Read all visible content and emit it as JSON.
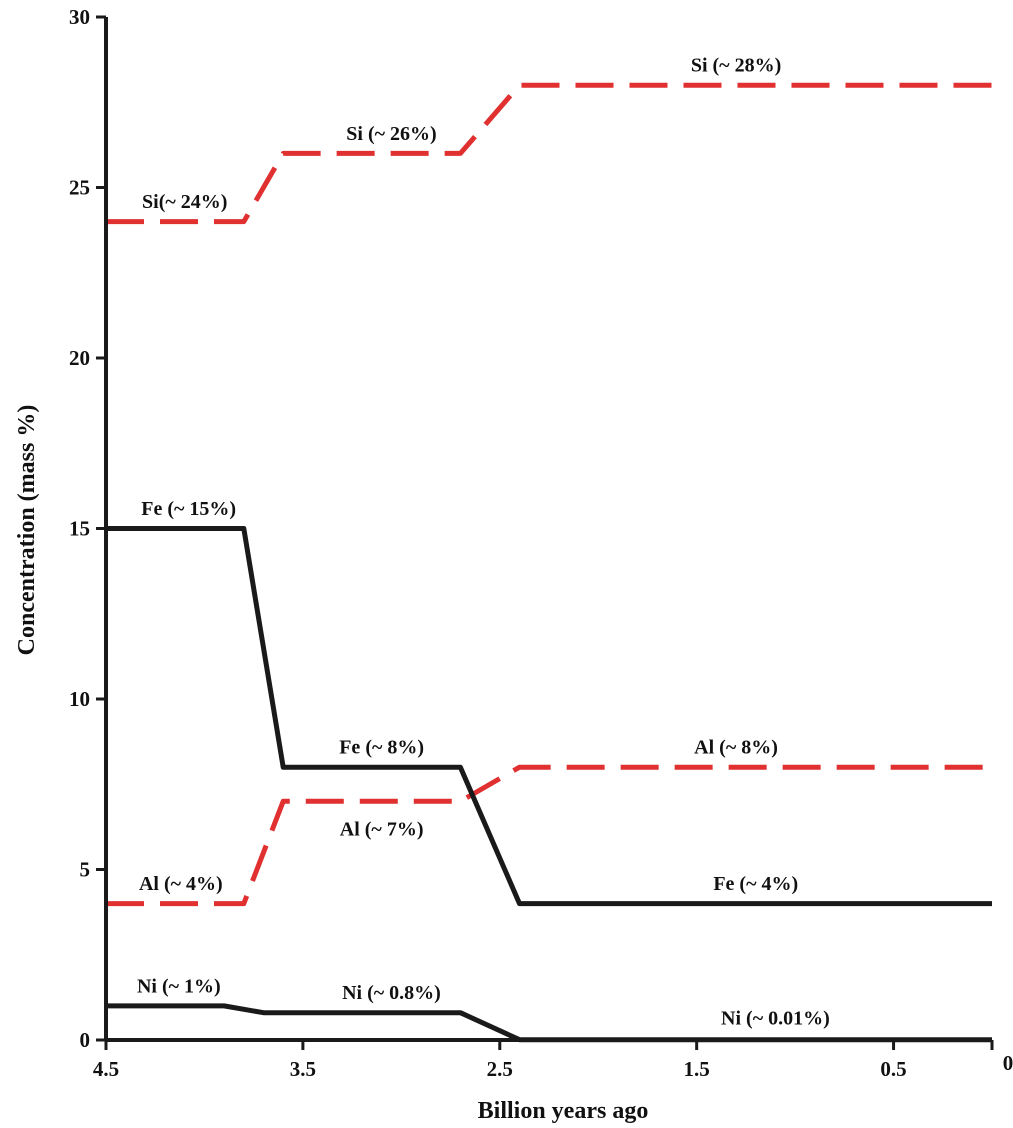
{
  "chart_data": {
    "type": "line",
    "xlabel": "Billion years ago",
    "ylabel": "Concentration (mass %)",
    "xlim": [
      4.5,
      0
    ],
    "ylim": [
      0,
      30
    ],
    "x_reversed": true,
    "grid": false,
    "legend": "none",
    "xticks": [
      {
        "value": 4.5,
        "label": "4.5"
      },
      {
        "value": 3.5,
        "label": "3.5"
      },
      {
        "value": 2.5,
        "label": "2.5"
      },
      {
        "value": 1.5,
        "label": "1.5"
      },
      {
        "value": 0.5,
        "label": "0.5"
      },
      {
        "value": 0,
        "label": "0"
      }
    ],
    "yticks": [
      {
        "value": 0,
        "label": "0"
      },
      {
        "value": 5,
        "label": "5"
      },
      {
        "value": 10,
        "label": "10"
      },
      {
        "value": 15,
        "label": "15"
      },
      {
        "value": 20,
        "label": "20"
      },
      {
        "value": 25,
        "label": "25"
      },
      {
        "value": 30,
        "label": "30"
      }
    ],
    "series": [
      {
        "element": "Si",
        "color": "#e03030",
        "style": "dashed",
        "points": [
          [
            4.5,
            24
          ],
          [
            3.8,
            24
          ],
          [
            3.6,
            26
          ],
          [
            2.7,
            26
          ],
          [
            2.4,
            28
          ],
          [
            0,
            28
          ]
        ],
        "labels": [
          {
            "text": "Si(~ 24%)",
            "x": 4.1,
            "y": 24.4
          },
          {
            "text": "Si (~ 26%)",
            "x": 3.05,
            "y": 26.4
          },
          {
            "text": "Si (~ 28%)",
            "x": 1.3,
            "y": 28.4
          }
        ]
      },
      {
        "element": "Al",
        "color": "#e03030",
        "style": "dashed",
        "points": [
          [
            4.5,
            4
          ],
          [
            3.8,
            4
          ],
          [
            3.6,
            7
          ],
          [
            2.7,
            7
          ],
          [
            2.4,
            8
          ],
          [
            0,
            8
          ]
        ],
        "labels": [
          {
            "text": "Al (~ 4%)",
            "x": 4.12,
            "y": 4.4
          },
          {
            "text": "Al (~ 7%)",
            "x": 3.1,
            "y": 6.0
          },
          {
            "text": "Al (~ 8%)",
            "x": 1.3,
            "y": 8.4
          }
        ]
      },
      {
        "element": "Fe",
        "color": "#1a1a1a",
        "style": "solid",
        "points": [
          [
            4.5,
            15
          ],
          [
            3.8,
            15
          ],
          [
            3.6,
            8
          ],
          [
            2.7,
            8
          ],
          [
            2.4,
            4
          ],
          [
            0,
            4
          ]
        ],
        "labels": [
          {
            "text": "Fe (~ 15%)",
            "x": 4.08,
            "y": 15.4
          },
          {
            "text": "Fe (~ 8%)",
            "x": 3.1,
            "y": 8.4
          },
          {
            "text": "Fe (~ 4%)",
            "x": 1.2,
            "y": 4.4
          }
        ]
      },
      {
        "element": "Ni",
        "color": "#1a1a1a",
        "style": "solid",
        "points": [
          [
            4.5,
            1
          ],
          [
            3.9,
            1
          ],
          [
            3.7,
            0.8
          ],
          [
            2.7,
            0.8
          ],
          [
            2.4,
            0.01
          ],
          [
            0,
            0.01
          ]
        ],
        "labels": [
          {
            "text": "Ni (~ 1%)",
            "x": 4.13,
            "y": 1.4
          },
          {
            "text": "Ni (~ 0.8%)",
            "x": 3.05,
            "y": 1.2
          },
          {
            "text": "Ni (~ 0.01%)",
            "x": 1.1,
            "y": 0.45
          }
        ]
      }
    ]
  }
}
